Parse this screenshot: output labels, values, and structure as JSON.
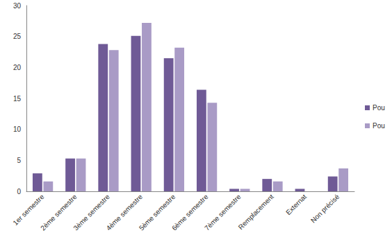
{
  "chart_data": {
    "type": "bar",
    "categories": [
      "1er semestre",
      "2ème semestre",
      "3ème semestre",
      "4ème semestre",
      "5ème semestre",
      "6ème semestre",
      "7ème semestre",
      "Remplacement",
      "Externat",
      "Non précisé"
    ],
    "series": [
      {
        "name": "Pou",
        "color": "#6f5a96",
        "values": [
          2.9,
          5.3,
          23.8,
          25.1,
          21.5,
          16.4,
          0.4,
          2.0,
          0.4,
          2.4
        ]
      },
      {
        "name": "Pou",
        "color": "#a99bc6",
        "values": [
          1.6,
          5.3,
          22.8,
          27.2,
          23.2,
          14.3,
          0.4,
          1.6,
          0,
          3.7
        ]
      }
    ],
    "ylim": [
      0,
      30
    ],
    "yticks": [
      0,
      5,
      10,
      15,
      20,
      25,
      30
    ],
    "grid": false,
    "legend": "right"
  }
}
